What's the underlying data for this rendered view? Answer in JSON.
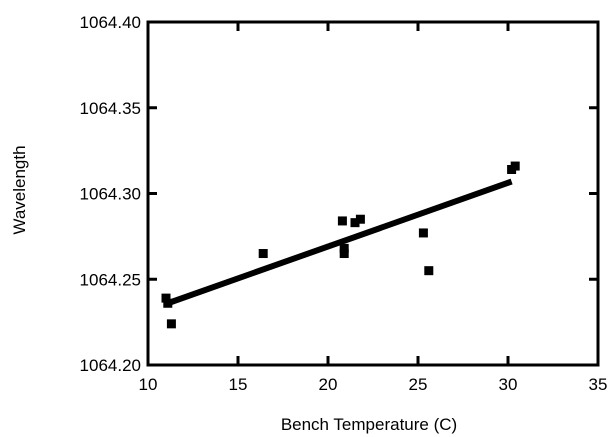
{
  "chart_data": {
    "type": "scatter",
    "title": "",
    "xlabel": "Bench Temperature (C)",
    "ylabel": "Wavelength",
    "xlim": [
      10,
      35
    ],
    "ylim": [
      1064.2,
      1064.4
    ],
    "xticks": [
      10,
      15,
      20,
      25,
      30,
      35
    ],
    "xtick_labels": [
      "10",
      "15",
      "20",
      "25",
      "30",
      "35"
    ],
    "yticks": [
      1064.2,
      1064.25,
      1064.3,
      1064.35,
      1064.4
    ],
    "ytick_labels": [
      "1064.20",
      "1064.25",
      "1064.30",
      "1064.35",
      "1064.40"
    ],
    "grid": false,
    "marker": "square",
    "series": [
      {
        "points": [
          {
            "x": 11.0,
            "y": 1064.239
          },
          {
            "x": 11.1,
            "y": 1064.236
          },
          {
            "x": 11.3,
            "y": 1064.224
          },
          {
            "x": 16.4,
            "y": 1064.265
          },
          {
            "x": 20.8,
            "y": 1064.284
          },
          {
            "x": 20.9,
            "y": 1064.268
          },
          {
            "x": 20.9,
            "y": 1064.265
          },
          {
            "x": 21.5,
            "y": 1064.283
          },
          {
            "x": 21.8,
            "y": 1064.285
          },
          {
            "x": 25.3,
            "y": 1064.277
          },
          {
            "x": 25.6,
            "y": 1064.255
          },
          {
            "x": 30.2,
            "y": 1064.314
          },
          {
            "x": 30.4,
            "y": 1064.316
          }
        ]
      }
    ],
    "fit_line": {
      "type": "linear",
      "start": {
        "x": 11.1,
        "y": 1064.236
      },
      "end": {
        "x": 30.2,
        "y": 1064.307
      }
    }
  }
}
